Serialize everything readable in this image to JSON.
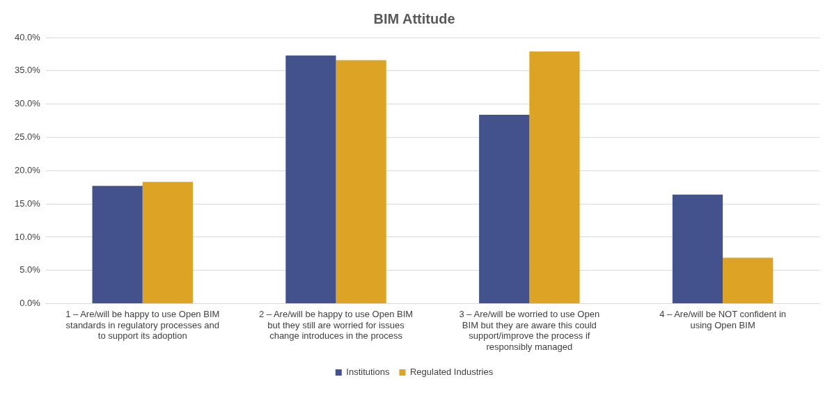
{
  "chart_data": {
    "type": "bar",
    "title": "BIM Attitude",
    "categories": [
      "1 – Are/will be happy to use Open BIM standards in regulatory processes and to support its adoption",
      "2 – Are/will be happy to use Open BIM but they still are worried for issues change introduces in the process",
      "3 – Are/will be worried to use Open BIM but they are aware this could support/improve the process if responsibly managed",
      "4 – Are/will be NOT confident in using Open BIM"
    ],
    "series": [
      {
        "name": "Institutions",
        "color": "#43528c",
        "values": [
          17.7,
          37.3,
          28.4,
          16.4
        ]
      },
      {
        "name": "Regulated Industries",
        "color": "#dca324",
        "values": [
          18.3,
          36.6,
          37.9,
          6.9
        ]
      }
    ],
    "ylim": [
      0,
      40
    ],
    "yticks": [
      {
        "value": 0,
        "label": "0.0%"
      },
      {
        "value": 5,
        "label": "5.0%"
      },
      {
        "value": 10,
        "label": "10.0%"
      },
      {
        "value": 15,
        "label": "15.0%"
      },
      {
        "value": 20,
        "label": "20.0%"
      },
      {
        "value": 25,
        "label": "25.0%"
      },
      {
        "value": 30,
        "label": "30.0%"
      },
      {
        "value": 35,
        "label": "35.0%"
      },
      {
        "value": 40,
        "label": "40.0%"
      }
    ],
    "grid": "y",
    "legend": "bottom"
  }
}
